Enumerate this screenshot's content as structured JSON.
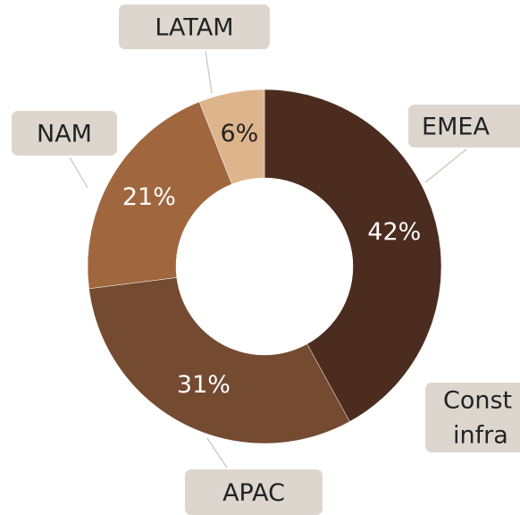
{
  "chart_data": {
    "type": "donut",
    "categories": [
      "EMEA",
      "APAC",
      "NAM",
      "LATAM"
    ],
    "values": [
      42,
      31,
      21,
      6
    ],
    "value_labels": [
      "42%",
      "31%",
      "21%",
      "6%"
    ],
    "colors": [
      "#4b2c1e",
      "#744a31",
      "#a0673f",
      "#deb48c"
    ],
    "annotation": [
      "Const",
      "infra"
    ]
  }
}
